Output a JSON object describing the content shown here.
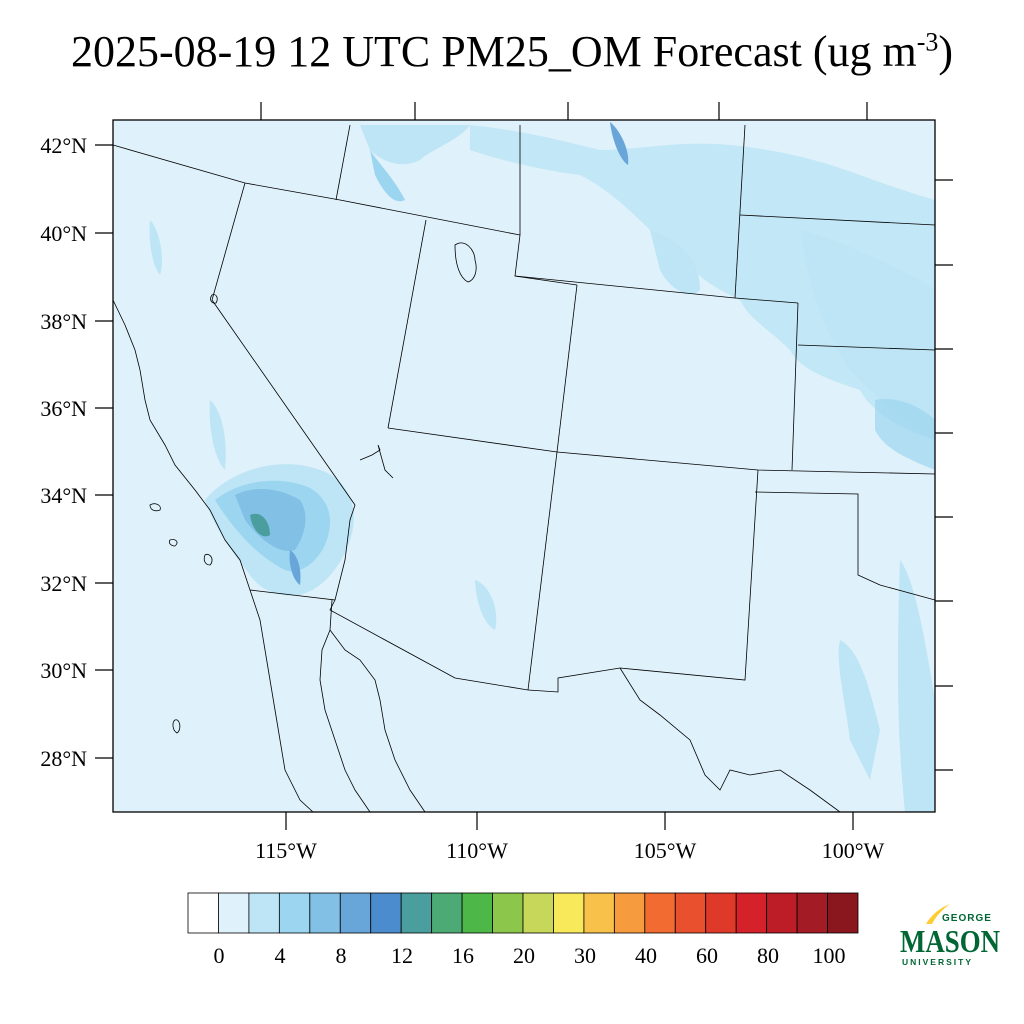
{
  "title": {
    "main": "2025-08-19 12 UTC PM25_OM Forecast (ug m",
    "exponent": "-3",
    "close": ")"
  },
  "map": {
    "background_color": "#dff1fa",
    "lat_ticks": [
      "42°N",
      "40°N",
      "38°N",
      "36°N",
      "34°N",
      "32°N",
      "30°N",
      "28°N"
    ],
    "lon_ticks": [
      "115°W",
      "110°W",
      "105°W",
      "100°W"
    ]
  },
  "colorbar": {
    "colors": [
      "#ffffff",
      "#dff1fa",
      "#bde5f5",
      "#9cd5f0",
      "#82c0e6",
      "#68a6da",
      "#4a8ccd",
      "#4a9e9e",
      "#4caa74",
      "#4db847",
      "#8cc64a",
      "#c6d75a",
      "#f7e95a",
      "#f8c14a",
      "#f69c3e",
      "#f26b30",
      "#e9502d",
      "#df3a29",
      "#d52129",
      "#bc1d27",
      "#a31b24",
      "#8a171d"
    ],
    "labels": [
      "0",
      "4",
      "8",
      "12",
      "16",
      "20",
      "30",
      "40",
      "60",
      "80",
      "100"
    ]
  },
  "logo": {
    "line1": "GEORGE",
    "line2": "MASON",
    "line3": "UNIVERSITY",
    "brand_green": "#006633",
    "brand_gold": "#ffcc33"
  }
}
